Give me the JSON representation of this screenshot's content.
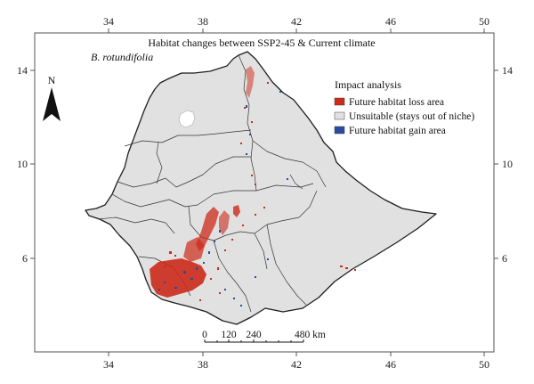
{
  "map": {
    "title": "Habitat changes between SSP2-45 & Current climate",
    "species": "B. rotundifolia",
    "north_label": "N",
    "x_ticks": [
      "34",
      "38",
      "42",
      "46",
      "50"
    ],
    "y_ticks": [
      "14",
      "10",
      "6"
    ],
    "legend": {
      "title": "Impact analysis",
      "items": [
        {
          "label": "Future habitat loss area",
          "color": "#cc2a1a"
        },
        {
          "label": "Unsuitable (stays out of niche)",
          "color": "#e1e1e1"
        },
        {
          "label": "Future habitat gain area",
          "color": "#2b4a9c"
        }
      ]
    },
    "scale_bar": {
      "labels": [
        "0",
        "120",
        "240",
        "480 km"
      ]
    },
    "colors": {
      "land": "#e1e1e1",
      "loss": "#cc2a1a",
      "gain": "#2b4a9c",
      "border": "#222222",
      "frame": "#555555"
    }
  }
}
